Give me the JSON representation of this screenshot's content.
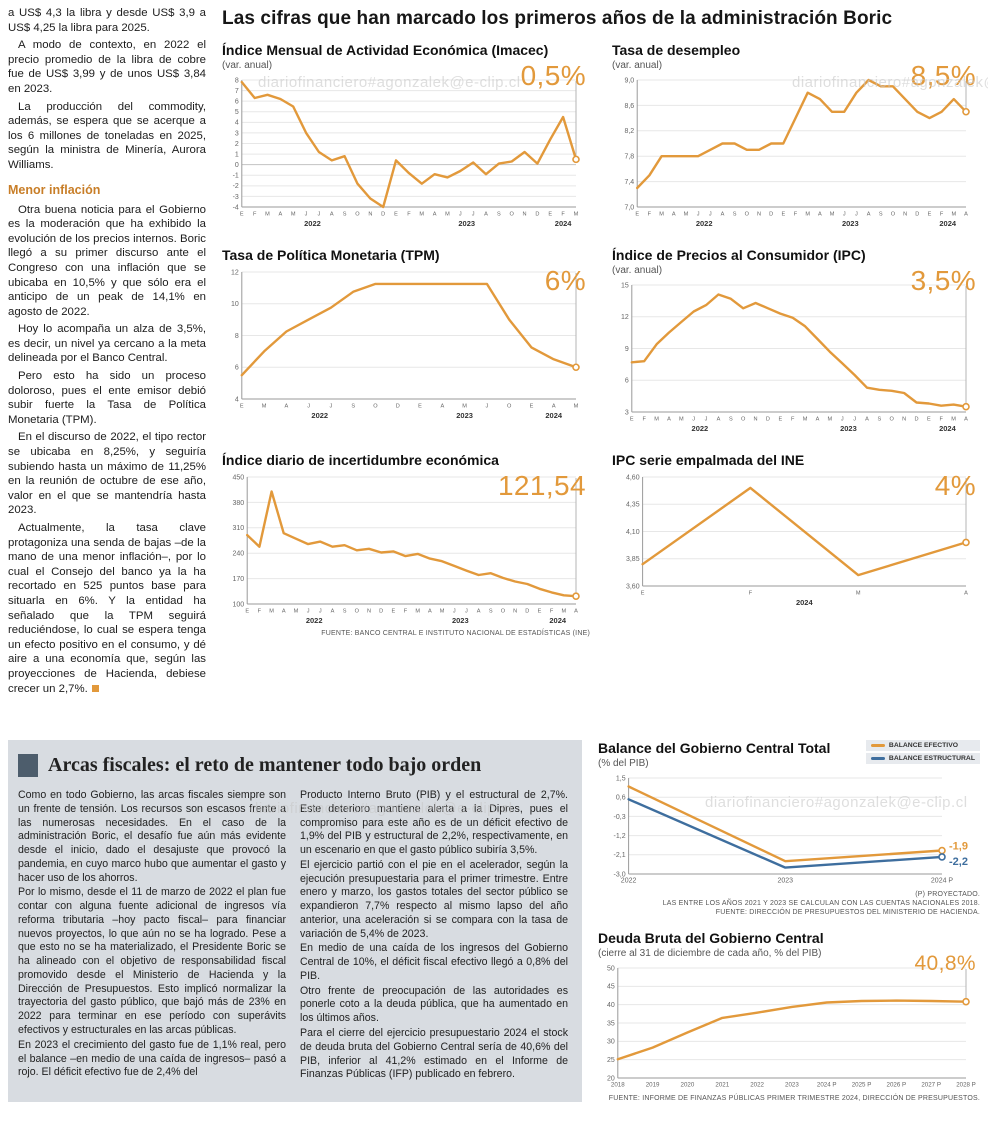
{
  "page": {
    "main_title": "Las cifras que han marcado los primeros años de la administración Boric",
    "watermark": "diariofinanciero#agonzalek@e-clip.cl"
  },
  "colors": {
    "accent_orange": "#E2993B",
    "accent_blue": "#3E6E9E",
    "panel_gray": "#D8DCE1",
    "headline_bar": "#4D5D6C",
    "subhead_orange": "#C87E28"
  },
  "left_article": {
    "intro_paragraphs": [
      "a US$ 4,3 la libra y desde US$ 3,9 a US$ 4,25 la libra para 2025.",
      "A modo de contexto, en 2022 el precio promedio de la libra de cobre fue de US$ 3,99 y de unos US$ 3,84 en 2023.",
      "La producción del commodity, además, se espera que se acerque a los 6 millones de toneladas en 2025, según la ministra de Minería, Aurora Williams."
    ],
    "subhead": "Menor inflación",
    "paragraphs": [
      "Otra buena noticia para el Gobierno es la moderación que ha exhibido la evolución de los precios internos. Boric llegó a su primer discurso ante el Congreso con una inflación que se ubicaba en 10,5% y que sólo era el anticipo de un peak de 14,1% en agosto de 2022.",
      "Hoy lo acompaña un alza de 3,5%, es decir, un nivel ya cercano a la meta delineada por el Banco Central.",
      "Pero esto ha sido un proceso doloroso, pues el ente emisor debió subir fuerte la Tasa de Política Monetaria (TPM).",
      "En el discurso de 2022, el tipo rector se ubicaba en 8,25%, y seguiría subiendo hasta un máximo de 11,25% en la reunión de octubre de ese año, valor en el que se mantendría hasta 2023.",
      "Actualmente, la tasa clave protagoniza una senda de bajas –de la mano de una menor inflación–, por lo cual el Consejo del banco ya la ha recortado en 525 puntos base para situarla en 6%. Y la entidad ha señalado que la TPM seguirá reduciéndose, lo cual se espera tenga un efecto positivo en el consumo, y dé aire a una economía que, según las proyecciones de Hacienda, debiese crecer un 2,7%."
    ]
  },
  "fiscal_article": {
    "title": "Arcas fiscales: el reto de mantener todo bajo orden",
    "col1_paragraphs": [
      "Como en todo Gobierno, las arcas fiscales siempre son un frente de tensión. Los recursos son escasos frente a las numerosas necesidades. En el caso de la administración Boric, el desafío fue aún más evidente desde el inicio, dado el desajuste que provocó la pandemia, en cuyo marco hubo que aumentar el gasto y hacer uso de los ahorros.",
      "Por lo mismo, desde el 11 de marzo de 2022 el plan fue contar con alguna fuente adicional de ingresos vía reforma tributaria –hoy pacto fiscal– para financiar nuevos proyectos, lo que aún no se ha logrado. Pese a que esto no se ha materializado, el Presidente Boric se ha alineado con el objetivo de responsabilidad fiscal promovido desde el Ministerio de Hacienda y la Dirección de Presupuestos. Esto implicó normalizar la trayectoria del gasto público, que bajó más de 23% en 2022 para terminar en ese período con superávits efectivos y estructurales en las arcas públicas.",
      "En 2023 el crecimiento del gasto fue de 1,1% real, pero el balance –en medio de una caída de ingresos– pasó a rojo. El déficit efectivo fue de 2,4% del"
    ],
    "col2_paragraphs": [
      "Producto Interno Bruto (PIB) y el estructural de 2,7%. Este deterioro mantiene alerta a la Dipres, pues el compromiso para este año es de un déficit efectivo de 1,9% del PIB y estructural de 2,2%, respectivamente, en un escenario en que el gasto público subiría 3,5%.",
      "El ejercicio partió con el pie en el acelerador, según la ejecución presupuestaria para el primer trimestre. Entre enero y marzo, los gastos totales del sector público se expandieron 7,7% respecto al mismo lapso del año anterior, una aceleración si se compara con la tasa de variación de 5,4% de 2023.",
      "En medio de una caída de los ingresos del Gobierno Central de 10%, el déficit fiscal efectivo llegó a 0,8% del PIB.",
      "Otro frente de preocupación de las autoridades es ponerle coto a la deuda pública, que ha aumentado en los últimos años.",
      "Para el cierre del ejercicio presupuestario 2024 el stock de deuda bruta del Gobierno Central sería de 40,6% del PIB, inferior al 41,2% estimado en el Informe de Finanzas Públicas (IFP) publicado en febrero."
    ]
  },
  "chart_data": [
    {
      "type": "line",
      "title": "Índice Mensual de Actividad Económica (Imacec)",
      "subtitle": "(var. anual)",
      "big_label": "0,5%",
      "ylim": [
        -4,
        8
      ],
      "y_ticks": [
        8,
        7,
        6,
        5,
        4,
        3,
        2,
        1,
        0,
        -1,
        -2,
        -3,
        -4
      ],
      "y_tick_labels": [
        "8",
        "7",
        "6",
        "5",
        "4",
        "3",
        "2",
        "1",
        "0",
        "-1",
        "-2",
        "-3",
        "-4"
      ],
      "x_labels": [
        "E",
        "F",
        "M",
        "A",
        "M",
        "J",
        "J",
        "A",
        "S",
        "O",
        "N",
        "D",
        "E",
        "F",
        "M",
        "A",
        "M",
        "J",
        "J",
        "A",
        "S",
        "O",
        "N",
        "D",
        "E",
        "F",
        "M"
      ],
      "x_groups": [
        {
          "label": "2022",
          "start": 0,
          "end": 11
        },
        {
          "label": "2023",
          "start": 12,
          "end": 23
        },
        {
          "label": "2024",
          "start": 24,
          "end": 26
        }
      ],
      "series": [
        {
          "name": "Imacec var. anual",
          "color": "#E2993B",
          "values": [
            7.8,
            6.3,
            6.6,
            6.2,
            5.5,
            3.0,
            1.2,
            0.4,
            0.8,
            -1.8,
            -3.2,
            -4.0,
            0.4,
            -0.8,
            -1.8,
            -0.9,
            -1.2,
            -0.6,
            0.2,
            -0.9,
            0.1,
            0.3,
            1.2,
            0.1,
            2.4,
            4.5,
            0.5
          ]
        }
      ]
    },
    {
      "type": "line",
      "title": "Tasa de desempleo",
      "subtitle": "(var. anual)",
      "big_label": "8,5%",
      "ylim": [
        7.0,
        9.0
      ],
      "y_ticks": [
        9.0,
        8.6,
        8.2,
        7.8,
        7.4,
        7.0
      ],
      "y_tick_labels": [
        "9,0",
        "8,6",
        "8,2",
        "7,8",
        "7,4",
        "7,0"
      ],
      "x_labels": [
        "E",
        "F",
        "M",
        "A",
        "M",
        "J",
        "J",
        "A",
        "S",
        "O",
        "N",
        "D",
        "E",
        "F",
        "M",
        "A",
        "M",
        "J",
        "J",
        "A",
        "S",
        "O",
        "N",
        "D",
        "E",
        "F",
        "M",
        "A"
      ],
      "x_groups": [
        {
          "label": "2022",
          "start": 0,
          "end": 11
        },
        {
          "label": "2023",
          "start": 12,
          "end": 23
        },
        {
          "label": "2024",
          "start": 24,
          "end": 27
        }
      ],
      "series": [
        {
          "name": "Tasa de desempleo",
          "color": "#E2993B",
          "values": [
            7.3,
            7.5,
            7.8,
            7.8,
            7.8,
            7.8,
            7.9,
            8.0,
            8.0,
            7.9,
            7.9,
            8.0,
            8.0,
            8.4,
            8.8,
            8.7,
            8.5,
            8.5,
            8.8,
            9.0,
            8.9,
            8.9,
            8.7,
            8.5,
            8.4,
            8.5,
            8.7,
            8.5
          ]
        }
      ]
    },
    {
      "type": "line",
      "title": "Tasa de Política Monetaria (TPM)",
      "big_label": "6%",
      "ylim": [
        4,
        12
      ],
      "y_ticks": [
        12,
        10,
        8,
        6,
        4
      ],
      "y_tick_labels": [
        "12",
        "10",
        "8",
        "6",
        "4"
      ],
      "x_labels": [
        "E",
        "M",
        "A",
        "J",
        "J",
        "S",
        "O",
        "D",
        "E",
        "A",
        "M",
        "J",
        "O",
        "E",
        "A",
        "M"
      ],
      "x_groups": [
        {
          "label": "2022",
          "start": 0,
          "end": 7
        },
        {
          "label": "2023",
          "start": 8,
          "end": 12
        },
        {
          "label": "2024",
          "start": 13,
          "end": 15
        }
      ],
      "series": [
        {
          "name": "TPM",
          "color": "#E2993B",
          "values": [
            5.5,
            7.0,
            8.25,
            9.0,
            9.75,
            10.75,
            11.25,
            11.25,
            11.25,
            11.25,
            11.25,
            11.25,
            9.0,
            7.25,
            6.5,
            6.0
          ]
        }
      ]
    },
    {
      "type": "line",
      "title": "Índice de Precios al Consumidor (IPC)",
      "subtitle": "(var. anual)",
      "big_label": "3,5%",
      "ylim": [
        3,
        15
      ],
      "y_ticks": [
        15,
        12,
        9,
        6,
        3
      ],
      "y_tick_labels": [
        "15",
        "12",
        "9",
        "6",
        "3"
      ],
      "x_labels": [
        "E",
        "F",
        "M",
        "A",
        "M",
        "J",
        "J",
        "A",
        "S",
        "O",
        "N",
        "D",
        "E",
        "F",
        "M",
        "A",
        "M",
        "J",
        "J",
        "A",
        "S",
        "O",
        "N",
        "D",
        "E",
        "F",
        "M",
        "A"
      ],
      "x_groups": [
        {
          "label": "2022",
          "start": 0,
          "end": 11
        },
        {
          "label": "2023",
          "start": 12,
          "end": 23
        },
        {
          "label": "2024",
          "start": 24,
          "end": 27
        }
      ],
      "series": [
        {
          "name": "IPC var. anual",
          "color": "#E2993B",
          "values": [
            7.7,
            7.8,
            9.4,
            10.5,
            11.5,
            12.5,
            13.1,
            14.1,
            13.7,
            12.8,
            13.3,
            12.8,
            12.3,
            11.9,
            11.1,
            9.9,
            8.7,
            7.6,
            6.5,
            5.3,
            5.1,
            5.0,
            4.8,
            3.9,
            3.8,
            3.6,
            3.7,
            3.5
          ]
        }
      ]
    },
    {
      "type": "line",
      "title": "Índice diario de incertidumbre económica",
      "big_label": "121,54",
      "ylim": [
        100,
        450
      ],
      "y_ticks": [
        450,
        380,
        310,
        240,
        170,
        100
      ],
      "y_tick_labels": [
        "450",
        "380",
        "310",
        "240",
        "170",
        "100"
      ],
      "x_labels": [
        "E",
        "F",
        "M",
        "A",
        "M",
        "J",
        "J",
        "A",
        "S",
        "O",
        "N",
        "D",
        "E",
        "F",
        "M",
        "A",
        "M",
        "J",
        "J",
        "A",
        "S",
        "O",
        "N",
        "D",
        "E",
        "F",
        "M",
        "A"
      ],
      "x_groups": [
        {
          "label": "2022",
          "start": 0,
          "end": 11
        },
        {
          "label": "2023",
          "start": 12,
          "end": 23
        },
        {
          "label": "2024",
          "start": 24,
          "end": 27
        }
      ],
      "series": [
        {
          "name": "Incertidumbre económica",
          "color": "#E2993B",
          "values": [
            290,
            258,
            410,
            295,
            280,
            265,
            272,
            258,
            262,
            248,
            252,
            242,
            245,
            232,
            238,
            225,
            218,
            205,
            192,
            180,
            185,
            172,
            162,
            155,
            142,
            132,
            124,
            121.54
          ]
        }
      ],
      "footnotes": [
        "FUENTE: BANCO CENTRAL E INSTITUTO NACIONAL DE ESTADÍSTICAS (INE)"
      ]
    },
    {
      "type": "line",
      "title": "IPC serie empalmada del INE",
      "big_label": "4%",
      "ylim": [
        3.6,
        4.6
      ],
      "y_ticks": [
        4.6,
        4.35,
        4.1,
        3.85,
        3.6
      ],
      "y_tick_labels": [
        "4,60",
        "4,35",
        "4,10",
        "3,85",
        "3,60"
      ],
      "x_labels": [
        "E",
        "F",
        "M",
        "A"
      ],
      "x_groups": [
        {
          "label": "2024",
          "start": 0,
          "end": 3
        }
      ],
      "series": [
        {
          "name": "IPC serie empalmada",
          "color": "#E2993B",
          "values": [
            3.8,
            4.5,
            3.7,
            4.0
          ]
        }
      ]
    },
    {
      "type": "line",
      "title": "Balance del Gobierno Central Total",
      "subtitle": "(% del PIB)",
      "ylim": [
        -3.0,
        1.5
      ],
      "y_ticks": [
        1.5,
        0.6,
        -0.3,
        -1.2,
        -2.1,
        -3.0
      ],
      "y_tick_labels": [
        "1,5",
        "0,6",
        "-0,3",
        "-1,2",
        "-2,1",
        "-3,0"
      ],
      "x_labels": [
        "2022",
        "2023",
        "2024 P"
      ],
      "x_label_size": 7,
      "legend": [
        {
          "label": "BALANCE EFECTIVO",
          "color": "#E2993B"
        },
        {
          "label": "BALANCE ESTRUCTURAL",
          "color": "#3E6E9E"
        }
      ],
      "series": [
        {
          "name": "Balance Efectivo",
          "color": "#E2993B",
          "values": [
            1.1,
            -2.4,
            -1.9
          ]
        },
        {
          "name": "Balance Estructural",
          "color": "#3E6E9E",
          "values": [
            0.5,
            -2.7,
            -2.2
          ]
        }
      ],
      "end_labels": [
        "-1,9",
        "-2,2"
      ],
      "footnotes": [
        "(P) PROYECTADO.",
        "LAS ENTRE LOS AÑOS 2021 Y 2023 SE CALCULAN CON LAS CUENTAS NACIONALES 2018.",
        "FUENTE: DIRECCIÓN DE PRESUPUESTOS DEL MINISTERIO DE HACIENDA."
      ]
    },
    {
      "type": "line",
      "title": "Deuda Bruta del Gobierno Central",
      "subtitle": "(cierre al 31 de diciembre de cada año, % del PIB)",
      "big_label": "40,8%",
      "ylim": [
        20,
        50
      ],
      "y_ticks": [
        50,
        45,
        40,
        35,
        30,
        25,
        20
      ],
      "y_tick_labels": [
        "50",
        "45",
        "40",
        "35",
        "30",
        "25",
        "20"
      ],
      "x_labels": [
        "2018",
        "2019",
        "2020",
        "2021",
        "2022",
        "2023",
        "2024 P",
        "2025 P",
        "2026 P",
        "2027 P",
        "2028 P"
      ],
      "x_label_size": 6.2,
      "series": [
        {
          "name": "Deuda bruta",
          "color": "#E2993B",
          "values": [
            25.1,
            28.3,
            32.4,
            36.4,
            37.8,
            39.4,
            40.6,
            41.0,
            41.1,
            41.0,
            40.8
          ]
        }
      ],
      "footnotes": [
        "FUENTE: INFORME DE FINANZAS PÚBLICAS PRIMER TRIMESTRE 2024, DIRECCIÓN DE PRESUPUESTOS."
      ]
    }
  ]
}
